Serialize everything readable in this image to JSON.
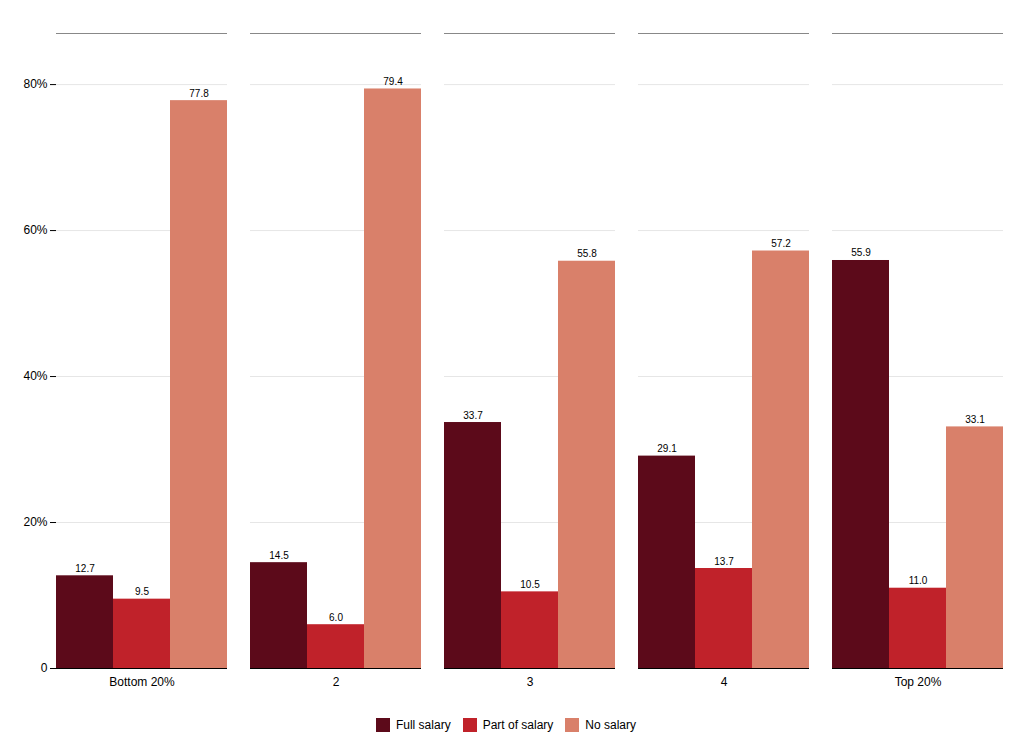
{
  "chart_data": {
    "type": "bar",
    "categories": [
      "Bottom 20%",
      "2",
      "3",
      "4",
      "Top 20%"
    ],
    "series": [
      {
        "name": "Full salary",
        "color": "#5c0a1a",
        "values": [
          12.7,
          14.5,
          33.7,
          29.1,
          55.9
        ]
      },
      {
        "name": "Part of salary",
        "color": "#c0222a",
        "values": [
          9.5,
          6.0,
          10.5,
          13.7,
          11.0
        ],
        "value_labels": [
          "9.5",
          "6.0",
          "10.5",
          "13.7",
          "11.0"
        ]
      },
      {
        "name": "No salary",
        "color": "#d9806a",
        "values": [
          77.8,
          79.4,
          55.8,
          57.2,
          33.1
        ]
      }
    ],
    "ylim": [
      0,
      87
    ],
    "yticks": [
      0,
      {
        "value": 20,
        "label": "20%"
      },
      {
        "value": 40,
        "label": "40%"
      },
      {
        "value": 60,
        "label": "60%"
      },
      {
        "value": 80,
        "label": "80%"
      }
    ],
    "grid": true,
    "legend": "bottom",
    "data_labels": true
  }
}
